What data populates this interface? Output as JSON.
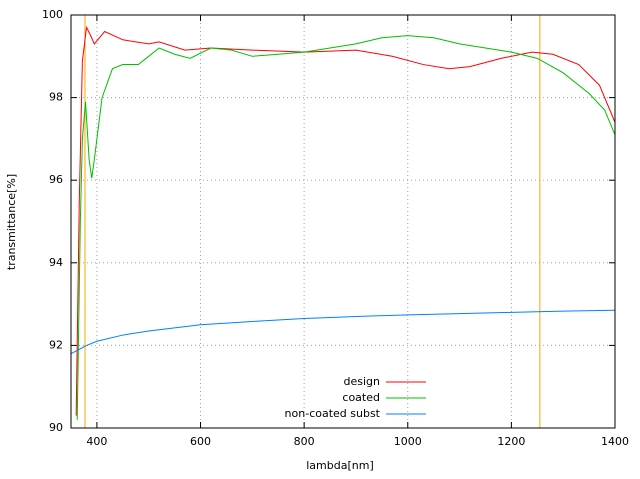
{
  "chart_data": {
    "type": "line",
    "xlabel": "lambda[nm]",
    "ylabel": "transmittance[%]",
    "xlim": [
      350,
      1400
    ],
    "ylim": [
      90,
      100
    ],
    "xticks": [
      400,
      600,
      800,
      1000,
      1200,
      1400
    ],
    "yticks": [
      90,
      92,
      94,
      96,
      98,
      100
    ],
    "grid": true,
    "legend": "bottom center",
    "vlines": [
      377,
      1255
    ],
    "vline_color": "#ffa500",
    "series": [
      {
        "name": "design",
        "color": "#ff0000",
        "x": [
          360,
          366,
          372,
          380,
          388,
          395,
          415,
          450,
          500,
          520,
          570,
          620,
          700,
          800,
          900,
          970,
          1030,
          1080,
          1120,
          1180,
          1240,
          1280,
          1330,
          1370,
          1400
        ],
        "values": [
          90.3,
          95.5,
          98.9,
          99.7,
          99.5,
          99.3,
          99.6,
          99.4,
          99.3,
          99.35,
          99.15,
          99.2,
          99.15,
          99.1,
          99.15,
          99.0,
          98.8,
          98.7,
          98.75,
          98.95,
          99.1,
          99.05,
          98.8,
          98.3,
          97.4
        ]
      },
      {
        "name": "coated",
        "color": "#00c000",
        "x": [
          362,
          368,
          372,
          378,
          385,
          390,
          395,
          410,
          430,
          450,
          480,
          500,
          520,
          550,
          580,
          620,
          660,
          700,
          750,
          800,
          850,
          900,
          950,
          1000,
          1050,
          1100,
          1150,
          1200,
          1250,
          1300,
          1350,
          1380,
          1400
        ],
        "values": [
          90.2,
          95.0,
          97.0,
          97.9,
          96.5,
          96.05,
          96.5,
          98.0,
          98.7,
          98.8,
          98.8,
          99.0,
          99.2,
          99.05,
          98.95,
          99.2,
          99.15,
          99.0,
          99.05,
          99.1,
          99.2,
          99.3,
          99.45,
          99.5,
          99.45,
          99.3,
          99.2,
          99.1,
          98.95,
          98.6,
          98.1,
          97.7,
          97.1
        ]
      },
      {
        "name": "non-coated subst",
        "color": "#0080ff",
        "x": [
          350,
          380,
          400,
          450,
          500,
          600,
          700,
          800,
          900,
          1000,
          1100,
          1200,
          1300,
          1400
        ],
        "values": [
          91.8,
          92.0,
          92.1,
          92.25,
          92.35,
          92.5,
          92.58,
          92.65,
          92.7,
          92.74,
          92.77,
          92.8,
          92.83,
          92.85
        ]
      }
    ]
  }
}
